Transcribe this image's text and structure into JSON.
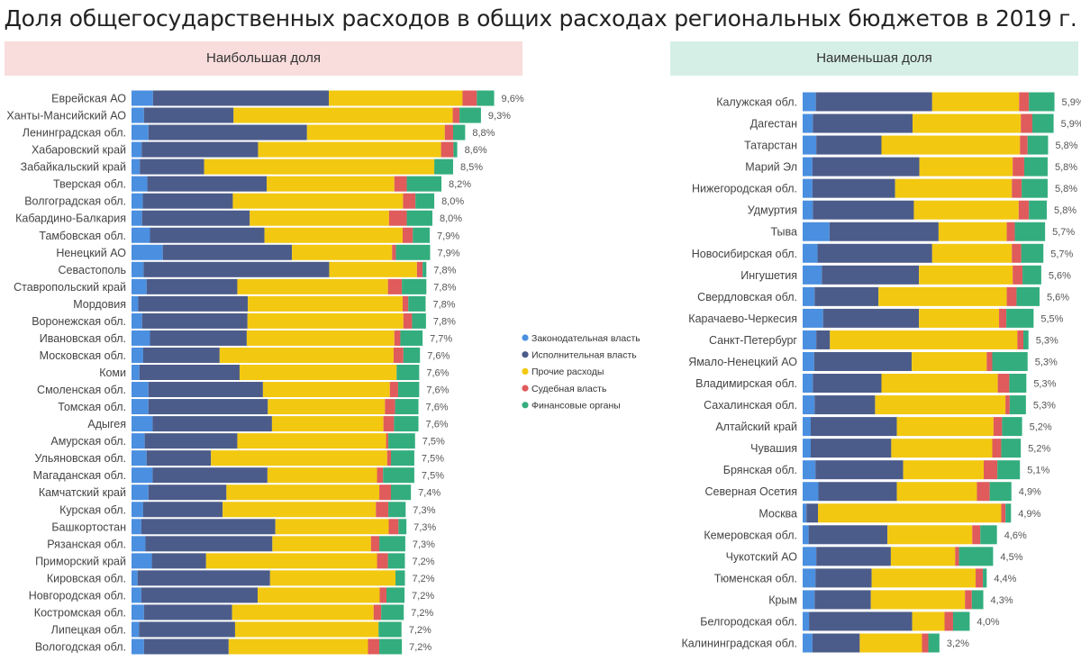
{
  "title": "Доля общегосударственных расходов в общих расходах региональных бюджетов в 2019 г.",
  "legend": {
    "placement": "center",
    "items": [
      {
        "name": "Законодательная власть",
        "color": "#4a8fe0"
      },
      {
        "name": "Исполнительная власть",
        "color": "#4c5c8a"
      },
      {
        "name": "Прочие расходы",
        "color": "#f2c811"
      },
      {
        "name": "Судебная власть",
        "color": "#e05b5b"
      },
      {
        "name": "Финансовые органы",
        "color": "#33ad7e"
      }
    ]
  },
  "chart_data": [
    {
      "type": "bar",
      "orientation": "horizontal-stacked",
      "title": "Наибольшая доля",
      "unit": "%",
      "categories": [
        "Еврейская АО",
        "Ханты-Мансийский АО",
        "Ленинградская обл.",
        "Хабаровский край",
        "Забайкальский край",
        "Тверская обл.",
        "Волгоградская обл.",
        "Кабардино-Балкария",
        "Тамбовская обл.",
        "Ненецкий АО",
        "Севастополь",
        "Ставропольский край",
        "Мордовия",
        "Воронежская обл.",
        "Ивановская обл.",
        "Московская обл.",
        "Коми",
        "Смоленская обл.",
        "Томская обл.",
        "Адыгея",
        "Амурская обл.",
        "Ульяновская обл.",
        "Магаданская обл.",
        "Камчатский край",
        "Курская обл.",
        "Башкортостан",
        "Рязанская обл.",
        "Приморский край",
        "Кировская обл.",
        "Новгородская обл.",
        "Костромская обл.",
        "Липецкая обл.",
        "Вологодская обл."
      ],
      "total_labels": [
        "9,6%",
        "9,3%",
        "8,8%",
        "8,6%",
        "8,5%",
        "8,2%",
        "8,0%",
        "8,0%",
        "7,9%",
        "7,9%",
        "7,8%",
        "7,8%",
        "7,8%",
        "7,8%",
        "7,7%",
        "7,6%",
        "7,6%",
        "7,6%",
        "7,6%",
        "7,6%",
        "7,5%",
        "7,5%",
        "7,5%",
        "7,4%",
        "7,3%",
        "7,3%",
        "7,3%",
        "7,2%",
        "7,2%",
        "7,2%",
        "7,2%",
        "7,2%",
        "7,2%"
      ],
      "series": [
        {
          "name": "Законодательная власть",
          "values": [
            0.57,
            0.33,
            0.45,
            0.27,
            0.22,
            0.42,
            0.3,
            0.28,
            0.49,
            0.83,
            0.32,
            0.4,
            0.18,
            0.28,
            0.49,
            0.31,
            0.21,
            0.45,
            0.45,
            0.56,
            0.35,
            0.4,
            0.56,
            0.45,
            0.31,
            0.26,
            0.37,
            0.54,
            0.16,
            0.26,
            0.33,
            0.2,
            0.33
          ]
        },
        {
          "name": "Исполнительная власть",
          "values": [
            4.67,
            2.38,
            4.21,
            3.09,
            1.71,
            3.17,
            2.39,
            2.86,
            3.04,
            3.43,
            4.93,
            2.41,
            2.91,
            2.8,
            2.57,
            2.03,
            2.66,
            3.04,
            3.17,
            3.17,
            2.46,
            1.71,
            3.05,
            2.07,
            2.11,
            3.56,
            3.37,
            1.44,
            3.52,
            3.09,
            2.34,
            2.55,
            2.25
          ]
        },
        {
          "name": "Прочие расходы",
          "values": [
            3.55,
            5.82,
            3.66,
            4.86,
            6.11,
            3.39,
            4.52,
            3.7,
            3.67,
            2.66,
            2.33,
            4.0,
            4.11,
            4.14,
            3.92,
            4.62,
            4.17,
            3.37,
            3.11,
            2.96,
            3.95,
            4.68,
            2.91,
            4.06,
            4.07,
            3.01,
            2.62,
            4.54,
            3.33,
            3.24,
            3.76,
            3.81,
            3.7
          ]
        },
        {
          "name": "Судебная власть",
          "values": [
            0.38,
            0.18,
            0.22,
            0.33,
            0,
            0.33,
            0.33,
            0.47,
            0.27,
            0.1,
            0.15,
            0.37,
            0.15,
            0.23,
            0.16,
            0.26,
            0,
            0.22,
            0.27,
            0.28,
            0.06,
            0.1,
            0.16,
            0.31,
            0.33,
            0.26,
            0.22,
            0.29,
            0,
            0.18,
            0.2,
            0,
            0.3
          ]
        },
        {
          "name": "Финансовые органы",
          "values": [
            0.46,
            0.57,
            0.32,
            0.1,
            0.5,
            0.92,
            0.5,
            0.68,
            0.45,
            0.91,
            0.1,
            0.65,
            0.46,
            0.37,
            0.59,
            0.44,
            0.6,
            0.56,
            0.62,
            0.65,
            0.71,
            0.62,
            0.83,
            0.53,
            0.46,
            0.21,
            0.69,
            0.45,
            0.25,
            0.48,
            0.6,
            0.61,
            0.6
          ]
        }
      ]
    },
    {
      "type": "bar",
      "orientation": "horizontal-stacked",
      "title": "Наименьшая доля",
      "unit": "%",
      "categories": [
        "Калужская обл.",
        "Дагестан",
        "Татарстан",
        "Марий Эл",
        "Нижегородская обл.",
        "Удмуртия",
        "Тыва",
        "Новосибирская обл.",
        "Ингушетия",
        "Свердловская обл.",
        "Карачаево-Черкесия",
        "Санкт-Петербург",
        "Ямало-Ненецкий АО",
        "Владимирская обл.",
        "Сахалинская обл.",
        "Алтайский край",
        "Чувашия",
        "Брянская обл.",
        "Северная Осетия",
        "Москва",
        "Кемеровская обл.",
        "Чукотский АО",
        "Тюменская обл.",
        "Крым",
        "Белгородская обл.",
        "Калининградская обл."
      ],
      "total_labels": [
        "5,9%",
        "5,9%",
        "5,8%",
        "5,8%",
        "5,8%",
        "5,8%",
        "5,7%",
        "5,7%",
        "5,6%",
        "5,6%",
        "5,5%",
        "5,3%",
        "5,3%",
        "5,3%",
        "5,3%",
        "5,2%",
        "5,2%",
        "5,1%",
        "4,9%",
        "4,9%",
        "4,6%",
        "4,5%",
        "4,4%",
        "4,3%",
        "4,0%",
        "3,2%"
      ],
      "series": [
        {
          "name": "Законодательная власть",
          "values": [
            0.31,
            0.24,
            0.32,
            0.23,
            0.23,
            0.24,
            0.63,
            0.35,
            0.45,
            0.28,
            0.48,
            0.32,
            0.27,
            0.24,
            0.28,
            0.19,
            0.19,
            0.3,
            0.37,
            0.09,
            0.14,
            0.32,
            0.3,
            0.28,
            0.15,
            0.23
          ]
        },
        {
          "name": "Исполнительная власть",
          "values": [
            2.73,
            2.34,
            1.53,
            2.51,
            1.94,
            2.37,
            2.56,
            2.69,
            2.28,
            1.5,
            2.25,
            0.32,
            2.29,
            1.61,
            1.42,
            2.02,
            1.89,
            2.06,
            1.84,
            0.27,
            1.85,
            1.75,
            1.32,
            1.32,
            2.42,
            1.11
          ]
        },
        {
          "name": "Прочие расходы",
          "values": [
            2.04,
            2.54,
            3.25,
            2.19,
            2.74,
            2.46,
            1.6,
            1.87,
            2.2,
            3.01,
            1.88,
            4.4,
            1.76,
            2.73,
            3.06,
            2.27,
            2.37,
            1.89,
            1.88,
            4.3,
            1.99,
            1.51,
            2.44,
            2.21,
            0.76,
            1.46
          ]
        },
        {
          "name": "Судебная власть",
          "values": [
            0.23,
            0.27,
            0.18,
            0.27,
            0.23,
            0.24,
            0.19,
            0.22,
            0.23,
            0.23,
            0.17,
            0.14,
            0.13,
            0.27,
            0.1,
            0.2,
            0.21,
            0.32,
            0.3,
            0.1,
            0.19,
            0.09,
            0.17,
            0.16,
            0.2,
            0.15
          ]
        },
        {
          "name": "Финансовые органы",
          "values": [
            0.6,
            0.5,
            0.48,
            0.55,
            0.61,
            0.42,
            0.71,
            0.52,
            0.44,
            0.54,
            0.64,
            0.12,
            0.83,
            0.4,
            0.38,
            0.47,
            0.46,
            0.53,
            0.51,
            0.13,
            0.39,
            0.8,
            0.09,
            0.27,
            0.39,
            0.26
          ]
        }
      ]
    }
  ]
}
